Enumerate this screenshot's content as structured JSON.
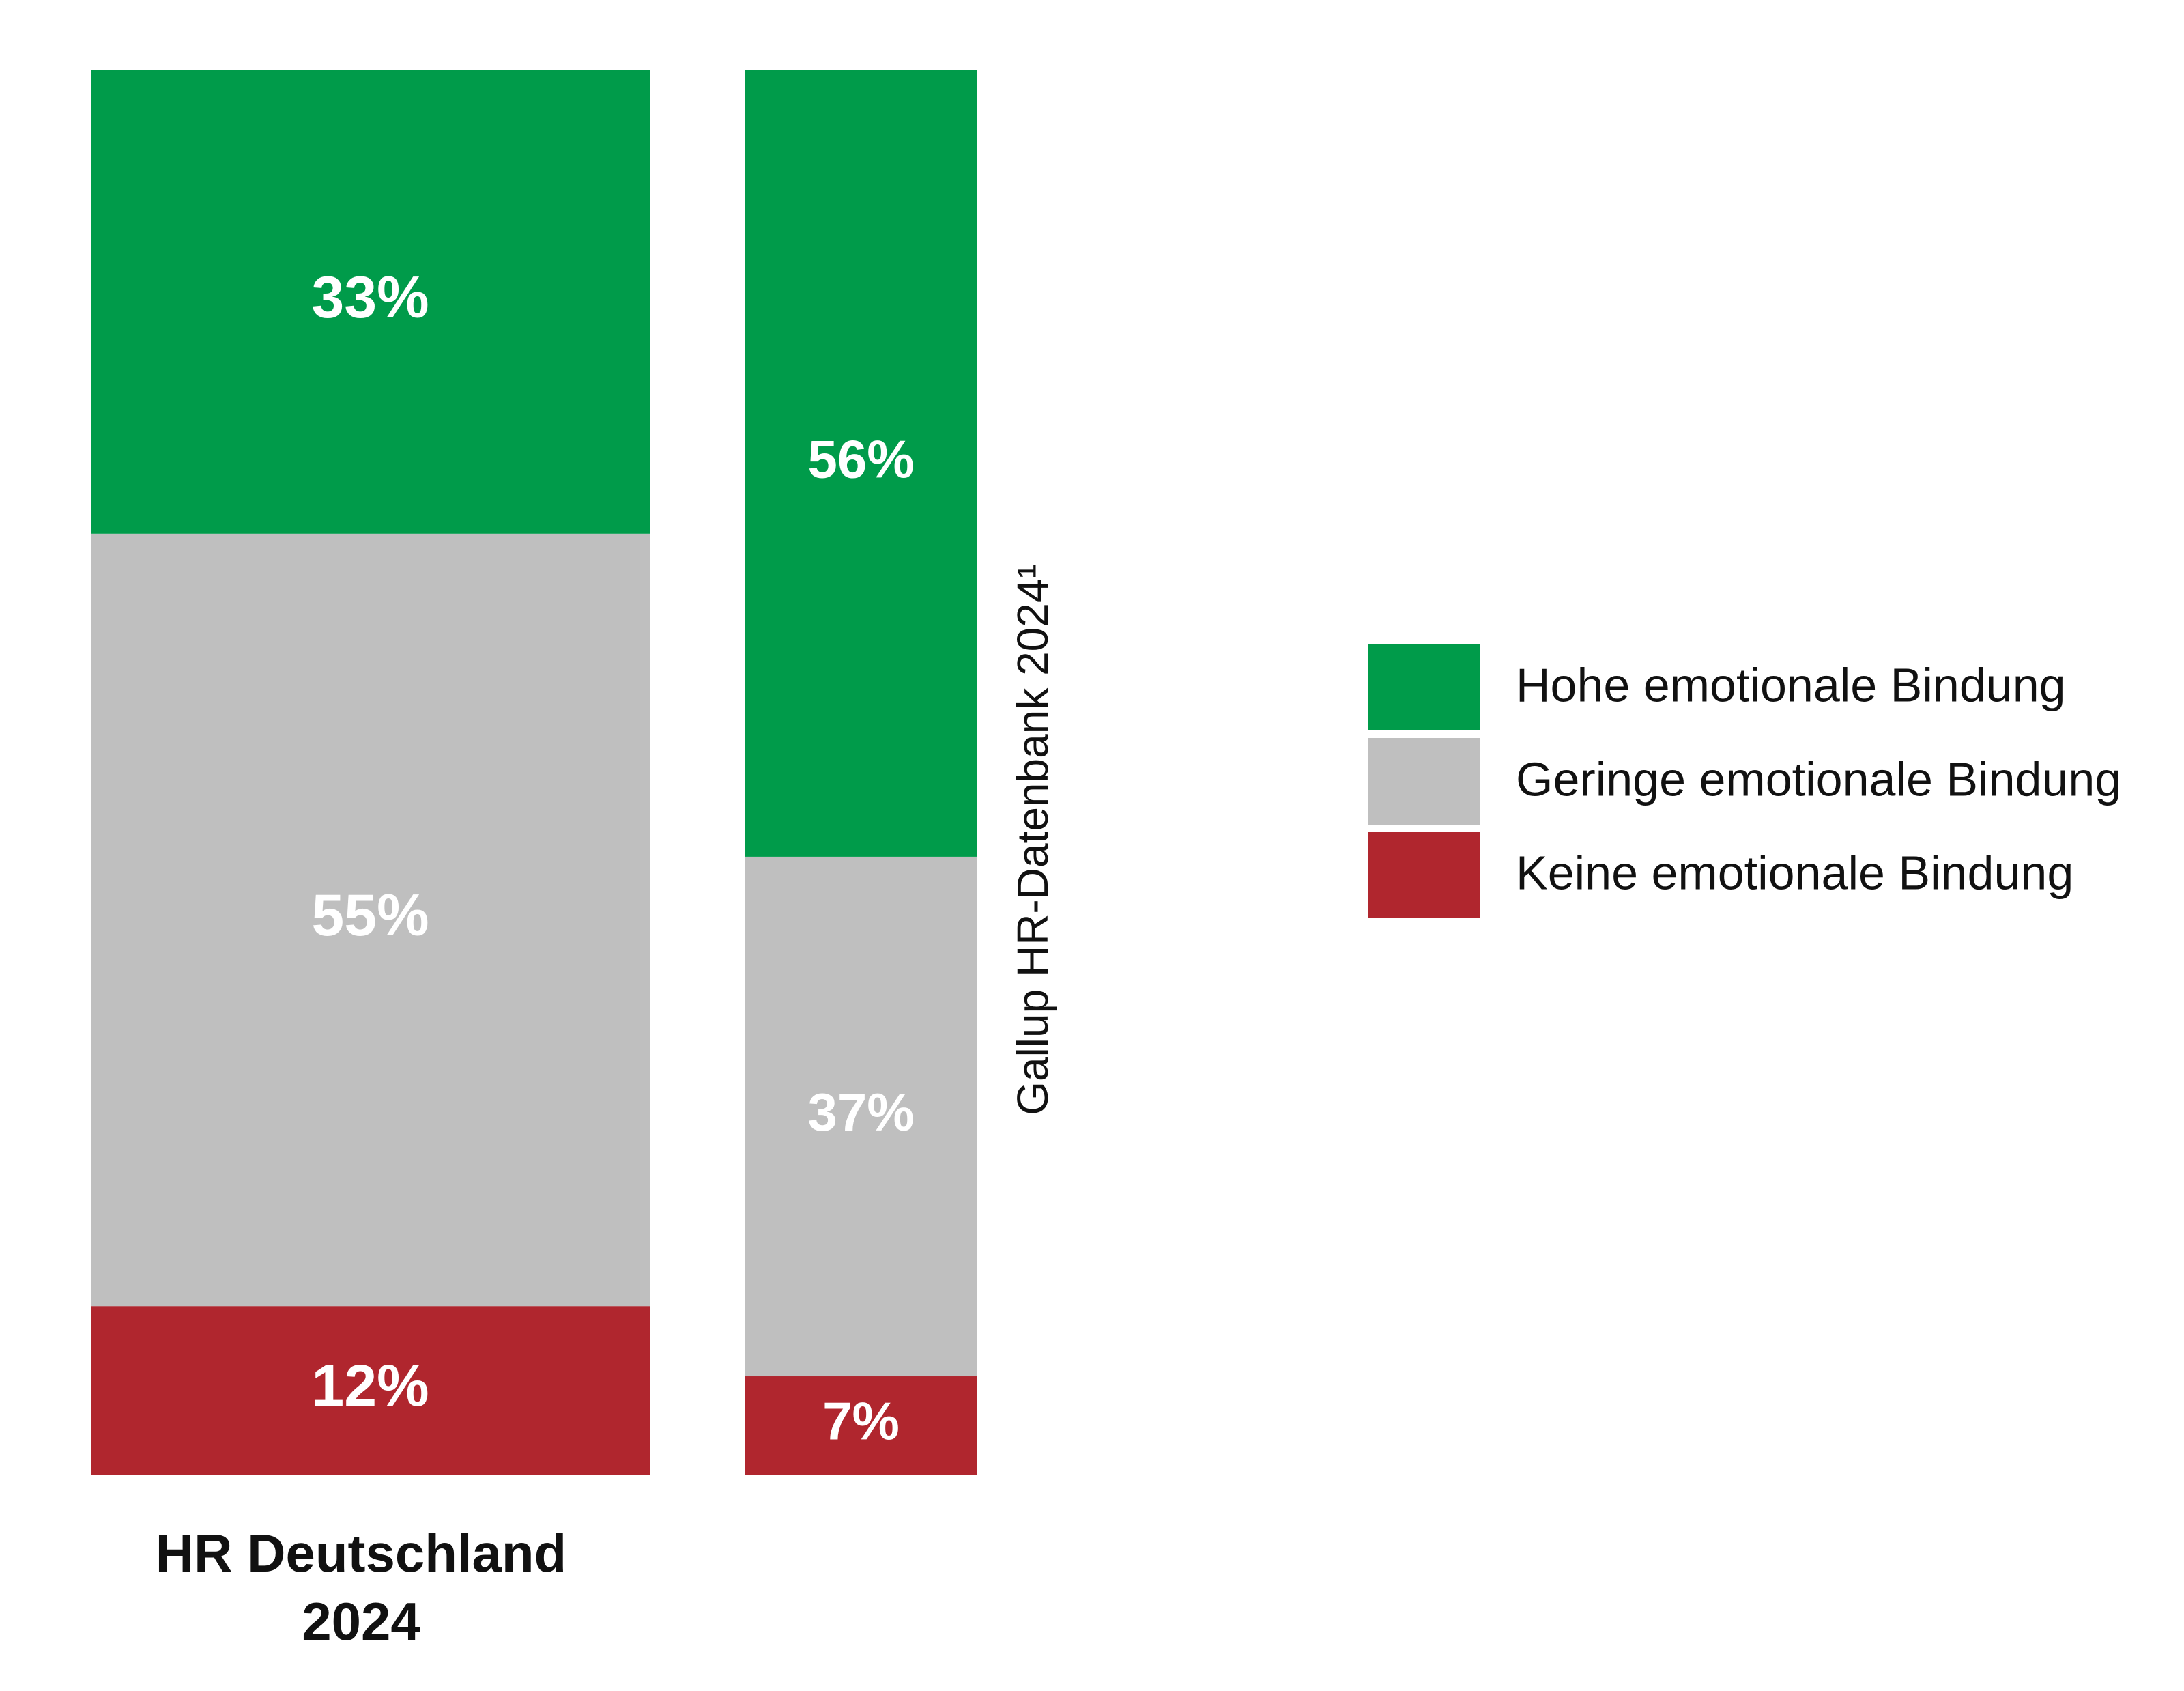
{
  "chart_data": {
    "type": "stacked_bar",
    "categories": [
      "HR Deutschland 2024",
      "Gallup HR-Datenbank 2024¹"
    ],
    "ylim": [
      0,
      100
    ],
    "series": [
      {
        "name": "Hohe emotionale Bindung",
        "color": "#009b4a",
        "values": [
          33,
          56
        ],
        "value_labels": [
          "33%",
          "56%"
        ]
      },
      {
        "name": "Geringe emotionale Bindung",
        "color": "#bfbfbf",
        "values": [
          55,
          37
        ],
        "value_labels": [
          "55%",
          "37%"
        ]
      },
      {
        "name": "Keine emotionale Bindung",
        "color": "#b0262e",
        "values": [
          12,
          7
        ],
        "value_labels": [
          "12%",
          "7%"
        ]
      }
    ]
  }
}
